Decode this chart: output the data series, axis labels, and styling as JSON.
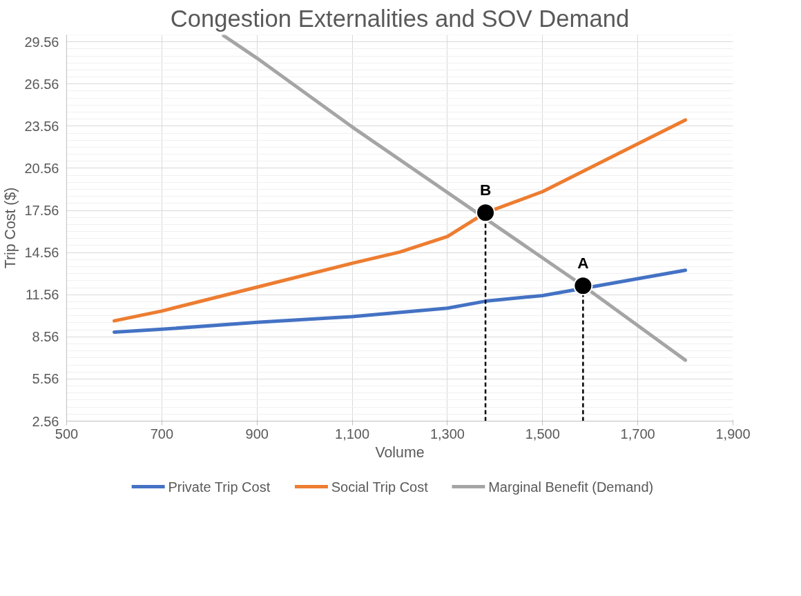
{
  "chart_data": {
    "type": "line",
    "title": "Congestion Externalities and SOV Demand",
    "xlabel": "Volume",
    "ylabel": "Trip Cost ($)",
    "xlim": [
      500,
      1900
    ],
    "ylim": [
      2.56,
      30.06
    ],
    "xticks": [
      500,
      700,
      900,
      {
        "value": 1100,
        "label": "1,100"
      },
      {
        "value": 1300,
        "label": "1,300"
      },
      {
        "value": 1500,
        "label": "1,500"
      },
      {
        "value": 1700,
        "label": "1,700"
      },
      {
        "value": 1900,
        "label": "1,900"
      }
    ],
    "yticks": [
      2.56,
      5.56,
      8.56,
      11.56,
      14.56,
      17.56,
      20.56,
      23.56,
      26.56,
      29.56
    ],
    "grid": true,
    "legend": "bottom",
    "line_style": "solid",
    "marker": "none",
    "series": [
      {
        "name": "Private Trip Cost",
        "color": "#4472c4",
        "x": [
          600,
          700,
          900,
          1100,
          1300,
          1380,
          1500,
          1700,
          1800
        ],
        "values": [
          8.9,
          9.1,
          9.6,
          10.0,
          10.6,
          11.1,
          11.5,
          12.7,
          13.3
        ]
      },
      {
        "name": "Social Trip Cost",
        "color": "#ed7d31",
        "x": [
          600,
          700,
          900,
          1100,
          1200,
          1300,
          1380,
          1500,
          1700,
          1800
        ],
        "values": [
          9.7,
          10.4,
          12.1,
          13.8,
          14.6,
          15.7,
          17.4,
          18.9,
          22.3,
          24.0
        ]
      },
      {
        "name": "Marginal Benefit (Demand)",
        "color": "#a5a5a5",
        "x": [
          830,
          900,
          1100,
          1585,
          1800
        ],
        "values": [
          30.0,
          28.4,
          23.5,
          12.2,
          6.9
        ]
      }
    ],
    "annotations": [
      {
        "text": "B",
        "x": 1380,
        "y": 17.4
      },
      {
        "text": "A",
        "x": 1585,
        "y": 12.2
      }
    ]
  }
}
